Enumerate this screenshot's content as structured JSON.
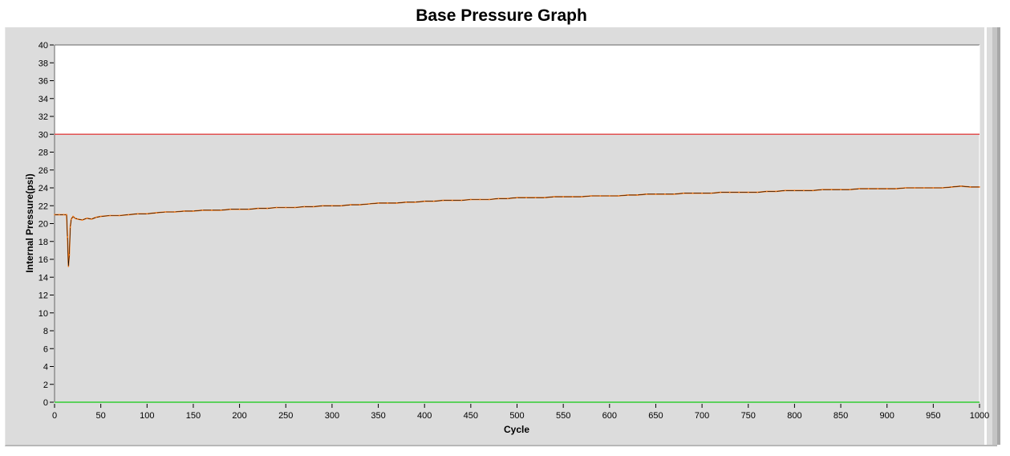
{
  "chart_data": {
    "type": "line",
    "title": "Base Pressure Graph",
    "xlabel": "Cycle",
    "ylabel": "Internal Pressure(psi)",
    "xlim": [
      0,
      1000
    ],
    "ylim": [
      0,
      40
    ],
    "xticks": [
      0,
      50,
      100,
      150,
      200,
      250,
      300,
      350,
      400,
      450,
      500,
      550,
      600,
      650,
      700,
      750,
      800,
      850,
      900,
      950,
      1000
    ],
    "yticks": [
      0,
      2,
      4,
      6,
      8,
      10,
      12,
      14,
      16,
      18,
      20,
      22,
      24,
      26,
      28,
      30,
      32,
      34,
      36,
      38,
      40
    ],
    "grid": false,
    "upper_limit": {
      "value": 30,
      "color": "#e05050"
    },
    "lower_limit": {
      "value": 0,
      "color": "#33cc33"
    },
    "series_color": "#ff7f1a",
    "series_line_color": "#000000",
    "background_above_limit": "#ffffff",
    "background_below_limit": "#dcdcdc",
    "series": [
      {
        "x": [
          0,
          5,
          10,
          13,
          14,
          15,
          16,
          17,
          18,
          20,
          22,
          25,
          30,
          35,
          40,
          45,
          50,
          60,
          70,
          80,
          90,
          100,
          110,
          120,
          130,
          140,
          150,
          160,
          170,
          180,
          190,
          200,
          210,
          220,
          230,
          240,
          250,
          260,
          270,
          280,
          290,
          300,
          310,
          320,
          330,
          340,
          350,
          360,
          370,
          380,
          390,
          400,
          410,
          420,
          430,
          440,
          450,
          460,
          470,
          480,
          490,
          500,
          510,
          520,
          530,
          540,
          550,
          560,
          570,
          580,
          590,
          600,
          610,
          620,
          630,
          640,
          650,
          660,
          670,
          680,
          690,
          700,
          710,
          720,
          730,
          740,
          750,
          760,
          770,
          780,
          790,
          800,
          810,
          820,
          830,
          840,
          850,
          860,
          870,
          880,
          890,
          900,
          910,
          920,
          930,
          940,
          950,
          960,
          970,
          980,
          990,
          1000
        ],
        "y": [
          21.0,
          21.0,
          21.0,
          21.0,
          18.5,
          15.2,
          16.5,
          19.6,
          20.5,
          20.8,
          20.6,
          20.5,
          20.4,
          20.6,
          20.5,
          20.7,
          20.8,
          20.9,
          20.9,
          21.0,
          21.1,
          21.1,
          21.2,
          21.3,
          21.3,
          21.4,
          21.4,
          21.5,
          21.5,
          21.5,
          21.6,
          21.6,
          21.6,
          21.7,
          21.7,
          21.8,
          21.8,
          21.8,
          21.9,
          21.9,
          22.0,
          22.0,
          22.0,
          22.1,
          22.1,
          22.2,
          22.3,
          22.3,
          22.3,
          22.4,
          22.4,
          22.5,
          22.5,
          22.6,
          22.6,
          22.6,
          22.7,
          22.7,
          22.7,
          22.8,
          22.8,
          22.9,
          22.9,
          22.9,
          22.9,
          23.0,
          23.0,
          23.0,
          23.0,
          23.1,
          23.1,
          23.1,
          23.1,
          23.2,
          23.2,
          23.3,
          23.3,
          23.3,
          23.3,
          23.4,
          23.4,
          23.4,
          23.4,
          23.5,
          23.5,
          23.5,
          23.5,
          23.5,
          23.6,
          23.6,
          23.7,
          23.7,
          23.7,
          23.7,
          23.8,
          23.8,
          23.8,
          23.8,
          23.9,
          23.9,
          23.9,
          23.9,
          23.9,
          24.0,
          24.0,
          24.0,
          24.0,
          24.0,
          24.1,
          24.2,
          24.1,
          24.1
        ]
      }
    ]
  }
}
